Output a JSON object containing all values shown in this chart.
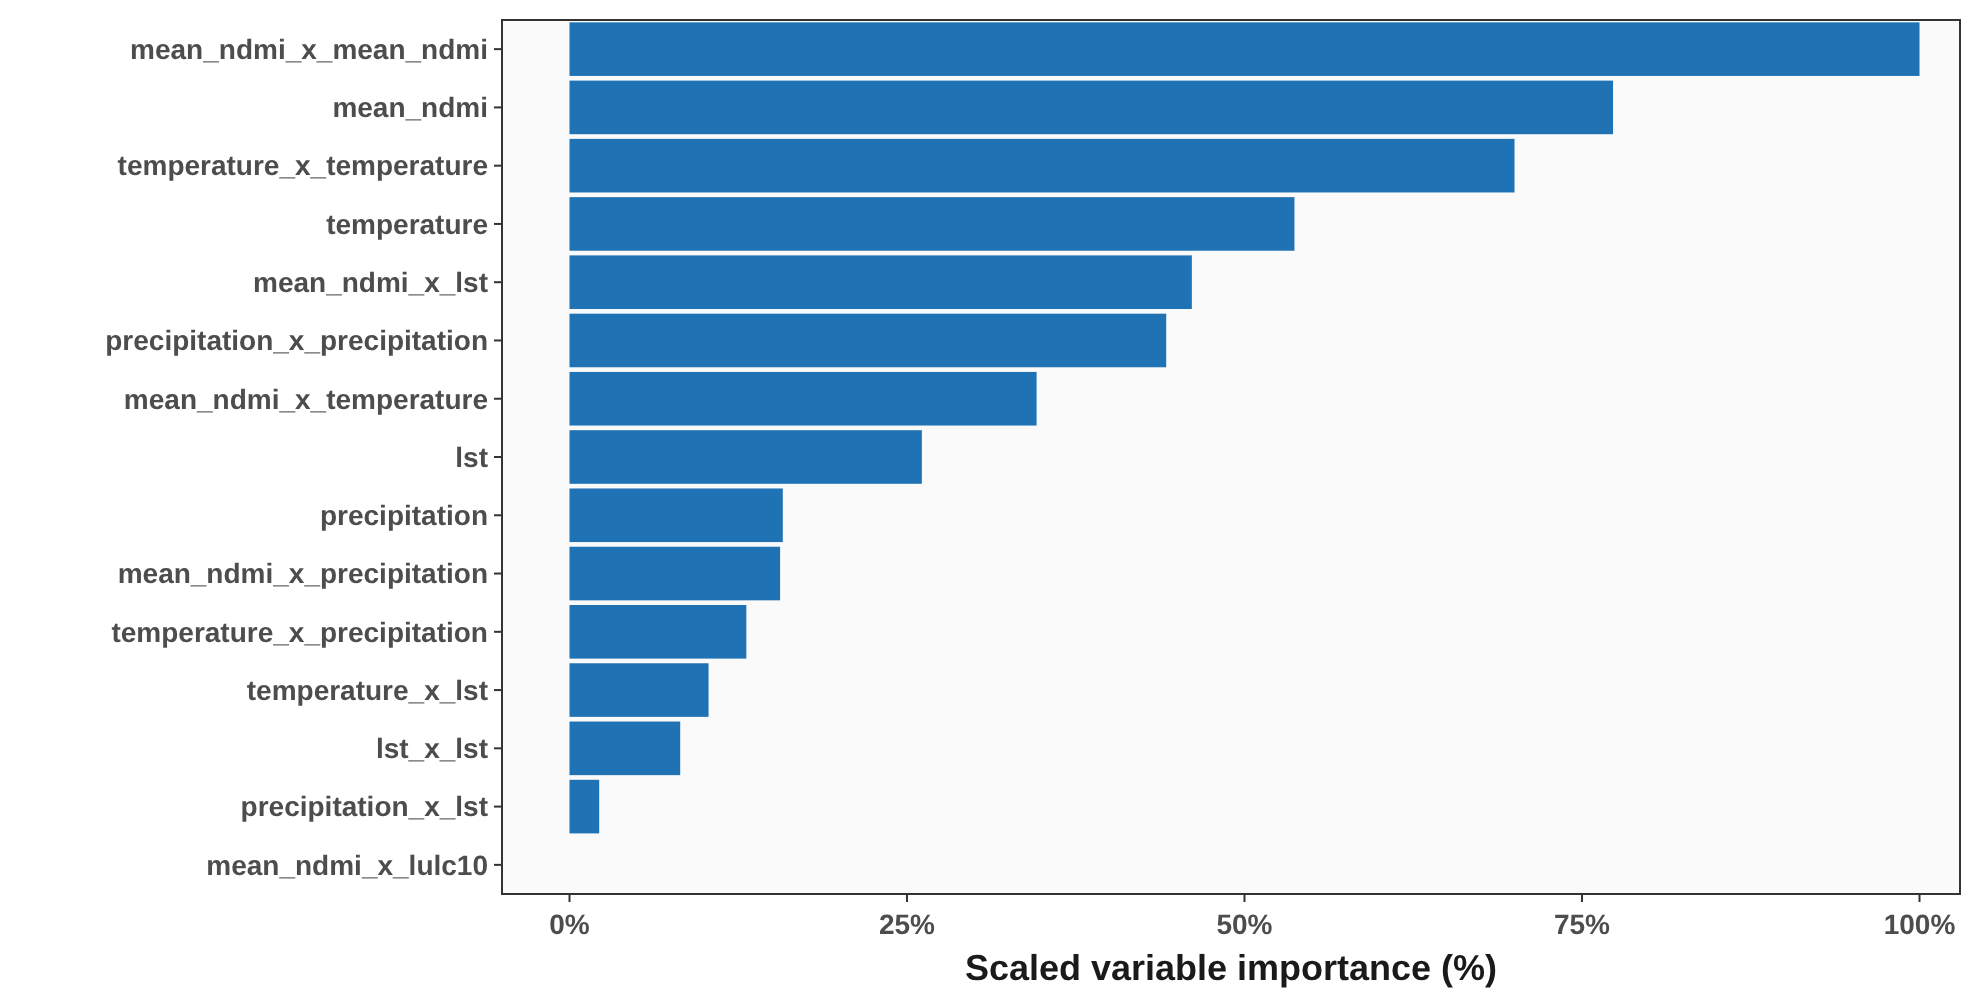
{
  "chart_data": {
    "type": "bar",
    "orientation": "horizontal",
    "xlabel": "Scaled variable importance (%)",
    "categories": [
      "mean_ndmi_x_mean_ndmi",
      "mean_ndmi",
      "temperature_x_temperature",
      "temperature",
      "mean_ndmi_x_lst",
      "precipitation_x_precipitation",
      "mean_ndmi_x_temperature",
      "lst",
      "precipitation",
      "mean_ndmi_x_precipitation",
      "temperature_x_precipitation",
      "temperature_x_lst",
      "lst_x_lst",
      "precipitation_x_lst",
      "mean_ndmi_x_lulc10"
    ],
    "values": [
      100,
      77.3,
      70.0,
      53.7,
      46.1,
      44.2,
      34.6,
      26.1,
      15.8,
      15.6,
      13.1,
      10.3,
      8.2,
      2.2,
      0
    ],
    "color": "#1f73b4",
    "xlim": [
      -5,
      103
    ],
    "xticks": [
      {
        "value": 0,
        "label": "0%"
      },
      {
        "value": 25,
        "label": "25%"
      },
      {
        "value": 50,
        "label": "50%"
      },
      {
        "value": 75,
        "label": "75%"
      },
      {
        "value": 100,
        "label": "100%"
      }
    ],
    "grid": false
  }
}
